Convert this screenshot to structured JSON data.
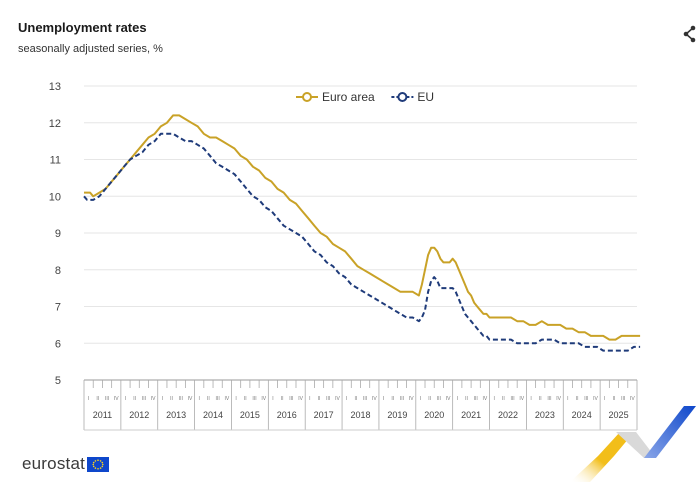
{
  "header": {
    "title": "Unemployment rates",
    "subtitle": "seasonally adjusted series, %"
  },
  "branding": {
    "logo_text": "eurostat",
    "share_icon": "share-icon",
    "eu_blue": "#0e47cb",
    "accent_yellow": "#f2be1a"
  },
  "chart_data": {
    "type": "line",
    "title": "Unemployment rates",
    "subtitle": "seasonally adjusted series, %",
    "xlabel": "",
    "ylabel": "",
    "ylim": [
      5,
      13
    ],
    "yticks": [
      5,
      6,
      7,
      8,
      9,
      10,
      11,
      12,
      13
    ],
    "quarter_labels": [
      "I",
      "II",
      "III",
      "IV"
    ],
    "year_labels": [
      "2011",
      "2012",
      "2013",
      "2014",
      "2015",
      "2016",
      "2017",
      "2018",
      "2019",
      "2020",
      "2021",
      "2022",
      "2023",
      "2024",
      "2025"
    ],
    "grid": true,
    "legend_position": "top-center",
    "x_unit": "months since Jan 2011",
    "series": [
      {
        "name": "Euro area",
        "color": "#c9a227",
        "dash": "solid",
        "x": [
          0,
          1,
          2,
          3,
          5,
          7,
          9,
          11,
          13,
          15,
          17,
          19,
          21,
          23,
          24,
          25,
          27,
          29,
          31,
          33,
          35,
          37,
          39,
          41,
          43,
          45,
          47,
          49,
          51,
          53,
          55,
          57,
          59,
          61,
          63,
          65,
          67,
          69,
          71,
          73,
          75,
          77,
          79,
          81,
          83,
          85,
          87,
          89,
          91,
          93,
          95,
          97,
          99,
          101,
          103,
          105,
          107,
          109,
          110,
          111,
          112,
          113,
          114,
          115,
          116,
          117,
          118,
          119,
          120,
          121,
          122,
          123,
          124,
          125,
          126,
          127,
          128,
          129,
          130,
          131,
          132,
          133,
          135,
          137,
          139,
          141,
          143,
          145,
          147,
          149,
          151,
          153,
          155,
          157,
          159,
          161,
          163,
          165,
          167,
          169,
          171,
          173,
          175,
          177,
          179,
          181
        ],
        "y": [
          10.1,
          10.1,
          10.1,
          10.0,
          10.1,
          10.2,
          10.4,
          10.6,
          10.8,
          11.0,
          11.2,
          11.4,
          11.6,
          11.7,
          11.8,
          11.9,
          12.0,
          12.2,
          12.2,
          12.1,
          12.0,
          11.9,
          11.7,
          11.6,
          11.6,
          11.5,
          11.4,
          11.3,
          11.1,
          11.0,
          10.8,
          10.7,
          10.5,
          10.4,
          10.2,
          10.1,
          9.9,
          9.8,
          9.6,
          9.4,
          9.2,
          9.0,
          8.9,
          8.7,
          8.6,
          8.5,
          8.3,
          8.1,
          8.0,
          7.9,
          7.8,
          7.7,
          7.6,
          7.5,
          7.4,
          7.4,
          7.4,
          7.3,
          7.6,
          8.0,
          8.4,
          8.6,
          8.6,
          8.5,
          8.3,
          8.2,
          8.2,
          8.2,
          8.3,
          8.2,
          8.0,
          7.8,
          7.6,
          7.4,
          7.3,
          7.1,
          7.0,
          6.9,
          6.8,
          6.8,
          6.7,
          6.7,
          6.7,
          6.7,
          6.7,
          6.6,
          6.6,
          6.5,
          6.5,
          6.6,
          6.5,
          6.5,
          6.5,
          6.4,
          6.4,
          6.3,
          6.3,
          6.2,
          6.2,
          6.2,
          6.1,
          6.1,
          6.2,
          6.2,
          6.2,
          6.2
        ]
      },
      {
        "name": "EU",
        "color": "#1f3b7a",
        "dash": "dashed",
        "x": [
          0,
          1,
          2,
          3,
          5,
          7,
          9,
          11,
          13,
          15,
          17,
          19,
          21,
          23,
          25,
          27,
          29,
          31,
          33,
          35,
          37,
          39,
          41,
          43,
          45,
          47,
          49,
          51,
          53,
          55,
          57,
          59,
          61,
          63,
          65,
          67,
          69,
          71,
          73,
          75,
          77,
          79,
          81,
          83,
          85,
          87,
          89,
          91,
          93,
          95,
          97,
          99,
          101,
          103,
          105,
          107,
          109,
          110,
          111,
          112,
          113,
          114,
          115,
          116,
          117,
          118,
          119,
          120,
          121,
          122,
          123,
          124,
          125,
          126,
          127,
          128,
          129,
          130,
          131,
          132,
          133,
          135,
          137,
          139,
          141,
          143,
          145,
          147,
          149,
          151,
          153,
          155,
          157,
          159,
          161,
          163,
          165,
          167,
          169,
          171,
          173,
          175,
          177,
          179,
          181
        ],
        "y": [
          10.0,
          9.9,
          9.9,
          9.9,
          10.0,
          10.2,
          10.4,
          10.6,
          10.8,
          11.0,
          11.1,
          11.2,
          11.4,
          11.5,
          11.7,
          11.7,
          11.7,
          11.6,
          11.5,
          11.5,
          11.4,
          11.3,
          11.1,
          10.9,
          10.8,
          10.7,
          10.6,
          10.4,
          10.2,
          10.0,
          9.9,
          9.7,
          9.6,
          9.4,
          9.2,
          9.1,
          9.0,
          8.9,
          8.7,
          8.5,
          8.4,
          8.2,
          8.1,
          7.9,
          7.8,
          7.6,
          7.5,
          7.4,
          7.3,
          7.2,
          7.1,
          7.0,
          6.9,
          6.8,
          6.7,
          6.7,
          6.6,
          6.7,
          6.9,
          7.4,
          7.7,
          7.8,
          7.7,
          7.5,
          7.5,
          7.5,
          7.5,
          7.5,
          7.4,
          7.2,
          7.0,
          6.8,
          6.7,
          6.6,
          6.5,
          6.4,
          6.3,
          6.2,
          6.2,
          6.1,
          6.1,
          6.1,
          6.1,
          6.1,
          6.0,
          6.0,
          6.0,
          6.0,
          6.1,
          6.1,
          6.1,
          6.0,
          6.0,
          6.0,
          6.0,
          5.9,
          5.9,
          5.9,
          5.8,
          5.8,
          5.8,
          5.8,
          5.8,
          5.9,
          5.9
        ]
      }
    ]
  }
}
